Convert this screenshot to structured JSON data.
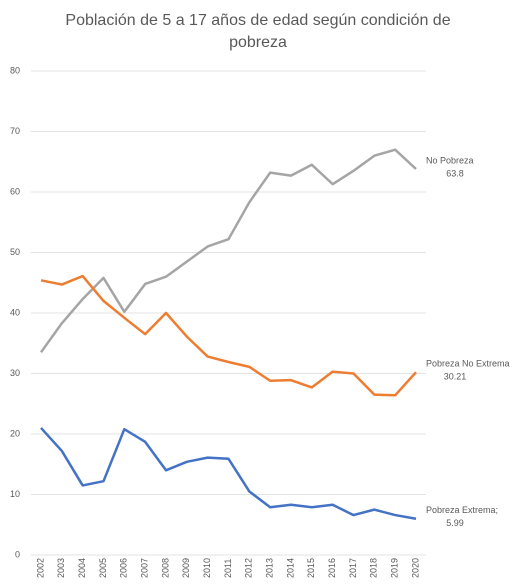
{
  "chart_data": {
    "type": "line",
    "title": "Población de 5 a 17 años de edad según condición de pobreza",
    "categories": [
      "2002",
      "2003",
      "2004",
      "2005",
      "2006",
      "2007",
      "2008",
      "2009",
      "2010",
      "2011",
      "2012",
      "2013",
      "2014",
      "2015",
      "2016",
      "2017",
      "2018",
      "2019",
      "2020"
    ],
    "series": [
      {
        "name": "No Pobreza",
        "color": "#a5a5a5",
        "values": [
          33.5,
          38.3,
          42.3,
          45.8,
          40.2,
          44.8,
          46,
          48.5,
          51,
          52.2,
          58.3,
          63.2,
          62.7,
          64.5,
          61.3,
          63.5,
          66,
          67,
          63.8
        ]
      },
      {
        "name": "Pobreza No Extrema",
        "color": "#ed7d31",
        "values": [
          45.4,
          44.7,
          46.1,
          42,
          39.2,
          36.5,
          40,
          36.1,
          32.8,
          31.9,
          31.1,
          28.8,
          28.9,
          27.7,
          30.3,
          30,
          26.5,
          26.4,
          30.21
        ]
      },
      {
        "name": "Pobreza Extrema;",
        "color": "#4472c4",
        "values": [
          21,
          17.2,
          11.5,
          12.2,
          20.8,
          18.7,
          14,
          15.4,
          16.1,
          15.9,
          10.5,
          7.9,
          8.3,
          7.9,
          8.3,
          6.6,
          7.5,
          6.6,
          5.99
        ]
      }
    ],
    "ylim": [
      0,
      80
    ],
    "yticks": [
      0,
      10,
      20,
      30,
      40,
      50,
      60,
      70,
      80
    ],
    "grid": true
  }
}
